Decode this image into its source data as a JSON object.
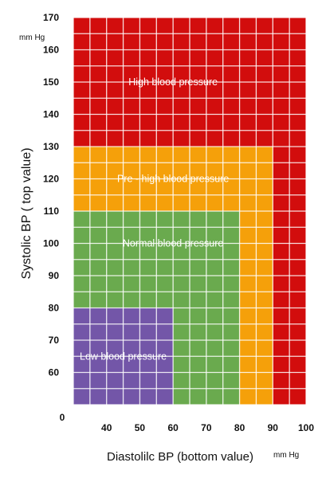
{
  "chart_data": {
    "type": "heatmap",
    "title": "",
    "xlabel": "Diastolilc BP (bottom value)",
    "ylabel": "Systolic BP ( top value)",
    "x_unit": "mm Hg",
    "y_unit": "mm Hg",
    "xlim": [
      30,
      100
    ],
    "ylim": [
      50,
      170
    ],
    "x_ticks": [
      "40",
      "50",
      "60",
      "70",
      "80",
      "90",
      "100"
    ],
    "y_ticks": [
      "60",
      "70",
      "80",
      "90",
      "100",
      "110",
      "120",
      "130",
      "140",
      "150",
      "160",
      "170"
    ],
    "origin_label": "0",
    "grid": true,
    "regions": [
      {
        "key": "high",
        "label": "High  blood  pressure",
        "color": "#d20d0d",
        "x": [
          30,
          100
        ],
        "y": [
          50,
          170
        ],
        "label_at": [
          60,
          150
        ]
      },
      {
        "key": "prehigh",
        "label": "Pre - high blood pressure",
        "color": "#f5a00a",
        "x": [
          30,
          90
        ],
        "y": [
          50,
          130
        ],
        "label_at": [
          60,
          120
        ]
      },
      {
        "key": "normal",
        "label": "Normal blood pressure",
        "color": "#6aaa4e",
        "x": [
          30,
          80
        ],
        "y": [
          50,
          110
        ],
        "label_at": [
          60,
          100
        ]
      },
      {
        "key": "low",
        "label": "Low blood pressure",
        "color": "#7356a8",
        "x": [
          30,
          60
        ],
        "y": [
          50,
          80
        ],
        "label_at": [
          45,
          65
        ]
      }
    ]
  }
}
